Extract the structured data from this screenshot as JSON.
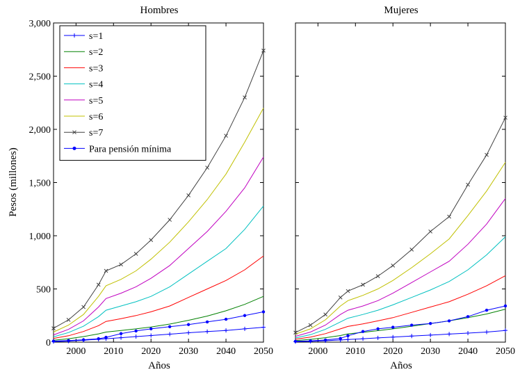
{
  "chart_data": [
    {
      "type": "line",
      "title": "Hombres",
      "xlabel": "Años",
      "ylabel": "Pesos (millones)",
      "xlim": [
        1994,
        2050
      ],
      "ylim": [
        0,
        3000
      ],
      "xticks": [
        2000,
        2010,
        2020,
        2030,
        2040,
        2050
      ],
      "yticks": [
        0,
        500,
        1000,
        1500,
        2000,
        2500,
        3000
      ],
      "ytick_labels": [
        "0",
        "500",
        "1,000",
        "1,500",
        "2,000",
        "2,500",
        "3,000"
      ],
      "grid": false,
      "legend_position": "top-left",
      "x": [
        1994,
        1998,
        2002,
        2006,
        2008,
        2012,
        2016,
        2020,
        2025,
        2030,
        2035,
        2040,
        2045,
        2050
      ],
      "series": [
        {
          "name": "s=1",
          "color": "#0000ff",
          "marker": "plus",
          "values": [
            5,
            10,
            18,
            27,
            32,
            42,
            52,
            62,
            75,
            88,
            100,
            110,
            125,
            140
          ]
        },
        {
          "name": "s=2",
          "color": "#008000",
          "marker": "none",
          "values": [
            18,
            32,
            52,
            78,
            95,
            110,
            125,
            142,
            170,
            205,
            245,
            295,
            355,
            430
          ]
        },
        {
          "name": "s=3",
          "color": "#ff0000",
          "marker": "none",
          "values": [
            35,
            60,
            100,
            155,
            195,
            220,
            250,
            285,
            340,
            420,
            500,
            580,
            680,
            810
          ]
        },
        {
          "name": "s=4",
          "color": "#00c0c0",
          "marker": "none",
          "values": [
            50,
            90,
            150,
            240,
            300,
            340,
            380,
            430,
            520,
            640,
            760,
            880,
            1060,
            1280
          ]
        },
        {
          "name": "s=5",
          "color": "#c000c0",
          "marker": "none",
          "values": [
            68,
            120,
            200,
            330,
            410,
            460,
            520,
            600,
            720,
            880,
            1040,
            1230,
            1450,
            1740
          ]
        },
        {
          "name": "s=6",
          "color": "#c0c000",
          "marker": "none",
          "values": [
            95,
            160,
            260,
            430,
            530,
            590,
            670,
            780,
            940,
            1130,
            1340,
            1580,
            1880,
            2200
          ]
        },
        {
          "name": "s=7",
          "color": "#404040",
          "marker": "x",
          "values": [
            130,
            210,
            330,
            540,
            670,
            730,
            830,
            960,
            1150,
            1380,
            1640,
            1940,
            2300,
            2740
          ]
        },
        {
          "name": "Para pensión mínima",
          "color": "#0000ff",
          "marker": "dot",
          "values": [
            10,
            15,
            22,
            32,
            45,
            80,
            105,
            125,
            145,
            165,
            190,
            215,
            250,
            285
          ]
        }
      ]
    },
    {
      "type": "line",
      "title": "Mujeres",
      "xlabel": "Años",
      "ylabel": "",
      "xlim": [
        1994,
        2050
      ],
      "ylim": [
        0,
        3000
      ],
      "xticks": [
        2000,
        2010,
        2020,
        2030,
        2040,
        2050
      ],
      "yticks": [
        0,
        500,
        1000,
        1500,
        2000,
        2500,
        3000
      ],
      "grid": false,
      "x": [
        1994,
        1998,
        2002,
        2006,
        2008,
        2012,
        2016,
        2020,
        2025,
        2030,
        2035,
        2040,
        2045,
        2050
      ],
      "series": [
        {
          "name": "s=1",
          "color": "#0000ff",
          "marker": "plus",
          "values": [
            5,
            8,
            13,
            20,
            25,
            32,
            40,
            47,
            57,
            66,
            76,
            85,
            95,
            110
          ]
        },
        {
          "name": "s=2",
          "color": "#008000",
          "marker": "none",
          "values": [
            15,
            26,
            42,
            62,
            78,
            92,
            108,
            125,
            150,
            175,
            200,
            230,
            265,
            310
          ]
        },
        {
          "name": "s=3",
          "color": "#ff0000",
          "marker": "none",
          "values": [
            28,
            48,
            80,
            125,
            148,
            172,
            200,
            230,
            280,
            330,
            380,
            450,
            530,
            625
          ]
        },
        {
          "name": "s=4",
          "color": "#00c0c0",
          "marker": "none",
          "values": [
            40,
            70,
            120,
            190,
            225,
            260,
            300,
            350,
            420,
            490,
            570,
            680,
            820,
            990
          ]
        },
        {
          "name": "s=5",
          "color": "#c000c0",
          "marker": "none",
          "values": [
            55,
            95,
            160,
            260,
            300,
            340,
            390,
            460,
            560,
            660,
            760,
            920,
            1110,
            1350
          ]
        },
        {
          "name": "s=6",
          "color": "#c0c000",
          "marker": "none",
          "values": [
            75,
            125,
            210,
            340,
            390,
            440,
            500,
            580,
            700,
            830,
            970,
            1190,
            1420,
            1690
          ]
        },
        {
          "name": "s=7",
          "color": "#404040",
          "marker": "x",
          "values": [
            90,
            160,
            260,
            420,
            480,
            540,
            620,
            720,
            870,
            1040,
            1180,
            1480,
            1760,
            2110
          ]
        },
        {
          "name": "Para pensión mínima",
          "color": "#0000ff",
          "marker": "dot",
          "values": [
            8,
            12,
            20,
            35,
            60,
            100,
            125,
            140,
            160,
            175,
            200,
            240,
            300,
            340
          ]
        }
      ]
    }
  ]
}
